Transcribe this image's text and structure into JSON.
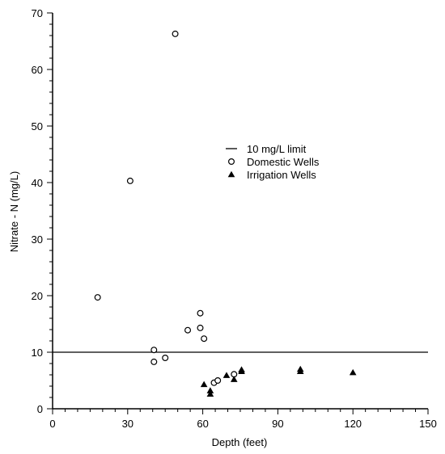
{
  "chart_data": {
    "type": "scatter",
    "title": "",
    "xlabel": "Depth (feet)",
    "ylabel": "Nitrate - N (mg/L)",
    "xlim": [
      0,
      150
    ],
    "ylim": [
      0,
      70
    ],
    "x_ticks": [
      0,
      30,
      60,
      90,
      120,
      150
    ],
    "x_tick_labels": [
      "0",
      "30",
      "60",
      "90",
      "120",
      "150"
    ],
    "y_ticks": [
      0,
      10,
      20,
      30,
      40,
      50,
      60,
      70
    ],
    "y_tick_labels": [
      "0",
      "10",
      "20",
      "30",
      "40",
      "50",
      "60",
      "70"
    ],
    "grid": false,
    "legend_position": "right-center",
    "reference_line": {
      "name": "10 mg/L limit",
      "y": 10
    },
    "series": [
      {
        "name": "Domestic Wells",
        "marker": "open-circle",
        "points": [
          {
            "x": 49,
            "y": 66.3
          },
          {
            "x": 31,
            "y": 40.3
          },
          {
            "x": 18,
            "y": 19.7
          },
          {
            "x": 59,
            "y": 16.9
          },
          {
            "x": 59,
            "y": 14.3
          },
          {
            "x": 54,
            "y": 13.9
          },
          {
            "x": 60.5,
            "y": 12.4
          },
          {
            "x": 40.5,
            "y": 10.4
          },
          {
            "x": 45,
            "y": 9.0
          },
          {
            "x": 40.5,
            "y": 8.3
          },
          {
            "x": 64.5,
            "y": 4.6
          },
          {
            "x": 66,
            "y": 5.0
          },
          {
            "x": 72.5,
            "y": 6.1
          }
        ]
      },
      {
        "name": "Irrigation Wells",
        "marker": "filled-triangle",
        "points": [
          {
            "x": 60.5,
            "y": 4.3
          },
          {
            "x": 63,
            "y": 3.2
          },
          {
            "x": 63,
            "y": 2.6
          },
          {
            "x": 69.5,
            "y": 5.9
          },
          {
            "x": 72.5,
            "y": 5.2
          },
          {
            "x": 75.5,
            "y": 6.9
          },
          {
            "x": 75.5,
            "y": 6.6
          },
          {
            "x": 99,
            "y": 7.0
          },
          {
            "x": 99,
            "y": 6.6
          },
          {
            "x": 120,
            "y": 6.4
          }
        ]
      }
    ]
  }
}
